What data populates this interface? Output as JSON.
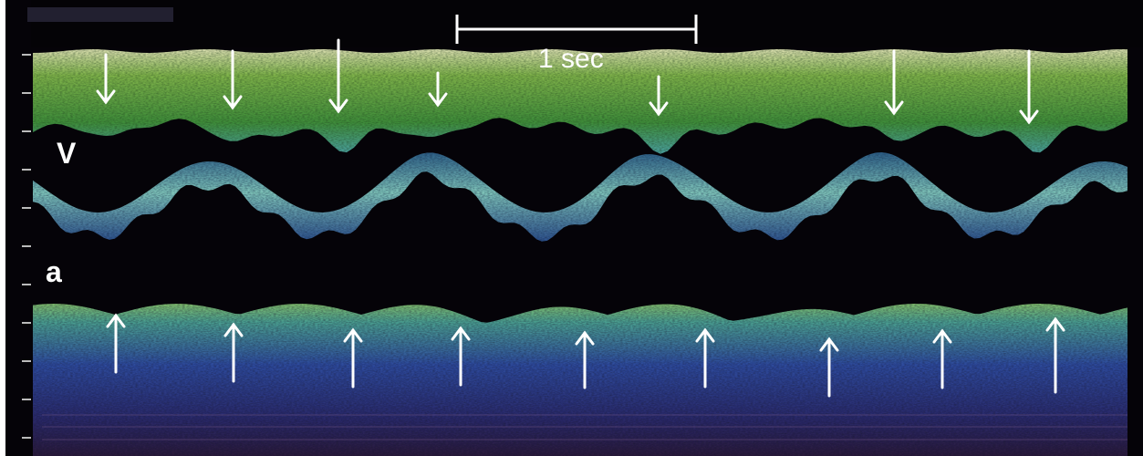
{
  "labels": {
    "ventricle": "V",
    "atrium": "a"
  },
  "scale_bar": {
    "text": "1 sec"
  },
  "top_left_readout": "",
  "arrows": {
    "ventricular_contraction_count": 7,
    "atrial_contraction_count": 9
  },
  "colors": {
    "background": "#050308",
    "tissue_green": "#4f8f3a",
    "tissue_cyan": "#4fa3a0",
    "tissue_blue": "#2b3f8a",
    "arrow": "#ffffff"
  }
}
